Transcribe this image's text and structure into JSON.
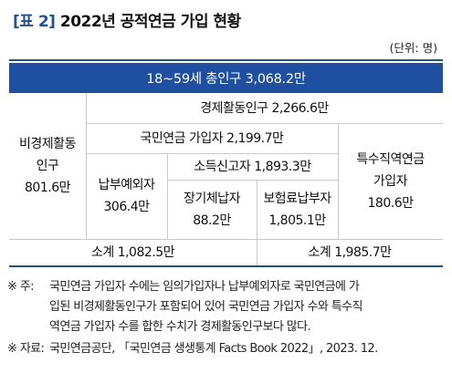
{
  "title": {
    "tag": "[표 2]",
    "text": "2022년 공적연금 가입 현황"
  },
  "unit": "(단위: 명)",
  "table": {
    "banner": "18~59세 총인구 3,068.2만",
    "non_economic": {
      "label_line1": "비경제활동",
      "label_line2": "인구",
      "value": "801.6만"
    },
    "economic": "경제활동인구 2,266.6만",
    "npc_subscribers": "국민연금 가입자 2,199.7만",
    "payment_exempt": {
      "label": "납부예외자",
      "value": "306.4만"
    },
    "income_reporters": "소득신고자 1,893.3만",
    "long_term_delinquent": {
      "label": "장기체납자",
      "value": "88.2만"
    },
    "premium_payers": {
      "label": "보험료납부자",
      "value": "1,805.1만"
    },
    "special_occupation": {
      "label_line1": "특수직역연금",
      "label_line2": "가입자",
      "value": "180.6만"
    },
    "subtotal_left": "소계 1,082.5만",
    "subtotal_right": "소계 1,985.7만"
  },
  "notes": {
    "note_mark": "※ 주:",
    "note_line1": "국민연금 가입자 수에는 임의가입자나 납부예외자로 국민연금에 가",
    "note_line2": "입된 비경제활동인구가 포함되어 있어 국민연금 가입자 수와 특수직",
    "note_line3": "역연금 가입자 수를 합한 수치가 경제활동인구보다 많다.",
    "source_mark": "※ 자료:",
    "source_text": "국민연금공단, 「국민연금 생생통계 Facts Book 2022」, 2023. 12."
  },
  "colors": {
    "accent": "#1f4fa0",
    "grid": "#c9c9c9"
  }
}
